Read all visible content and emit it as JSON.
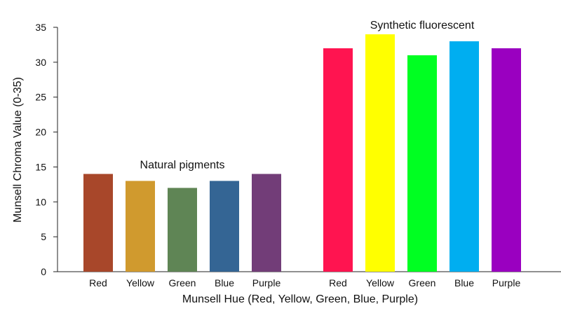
{
  "chart_data": {
    "type": "bar",
    "title": "",
    "xlabel": "Munsell Hue (Red, Yellow, Green, Blue, Purple)",
    "ylabel": "Munsell Chroma Value (0-35)",
    "ylim": [
      0,
      35
    ],
    "yticks": [
      0,
      5,
      10,
      15,
      20,
      25,
      30,
      35
    ],
    "grid": false,
    "legend": "none",
    "groups": [
      {
        "label": "Natural pigments",
        "bars": [
          {
            "category": "Red",
            "value": 14,
            "color": "#A8472A"
          },
          {
            "category": "Yellow",
            "value": 13,
            "color": "#D09A2E"
          },
          {
            "category": "Green",
            "value": 12,
            "color": "#5F8555"
          },
          {
            "category": "Blue",
            "value": 13,
            "color": "#346594"
          },
          {
            "category": "Purple",
            "value": 14,
            "color": "#723D78"
          }
        ]
      },
      {
        "label": "Synthetic fluorescent",
        "bars": [
          {
            "category": "Red",
            "value": 32,
            "color": "#FF1450"
          },
          {
            "category": "Yellow",
            "value": 34,
            "color": "#FFFF00"
          },
          {
            "category": "Green",
            "value": 31,
            "color": "#00FF22"
          },
          {
            "category": "Blue",
            "value": 33,
            "color": "#00AEF0"
          },
          {
            "category": "Purple",
            "value": 32,
            "color": "#9A00C0"
          }
        ]
      }
    ]
  }
}
